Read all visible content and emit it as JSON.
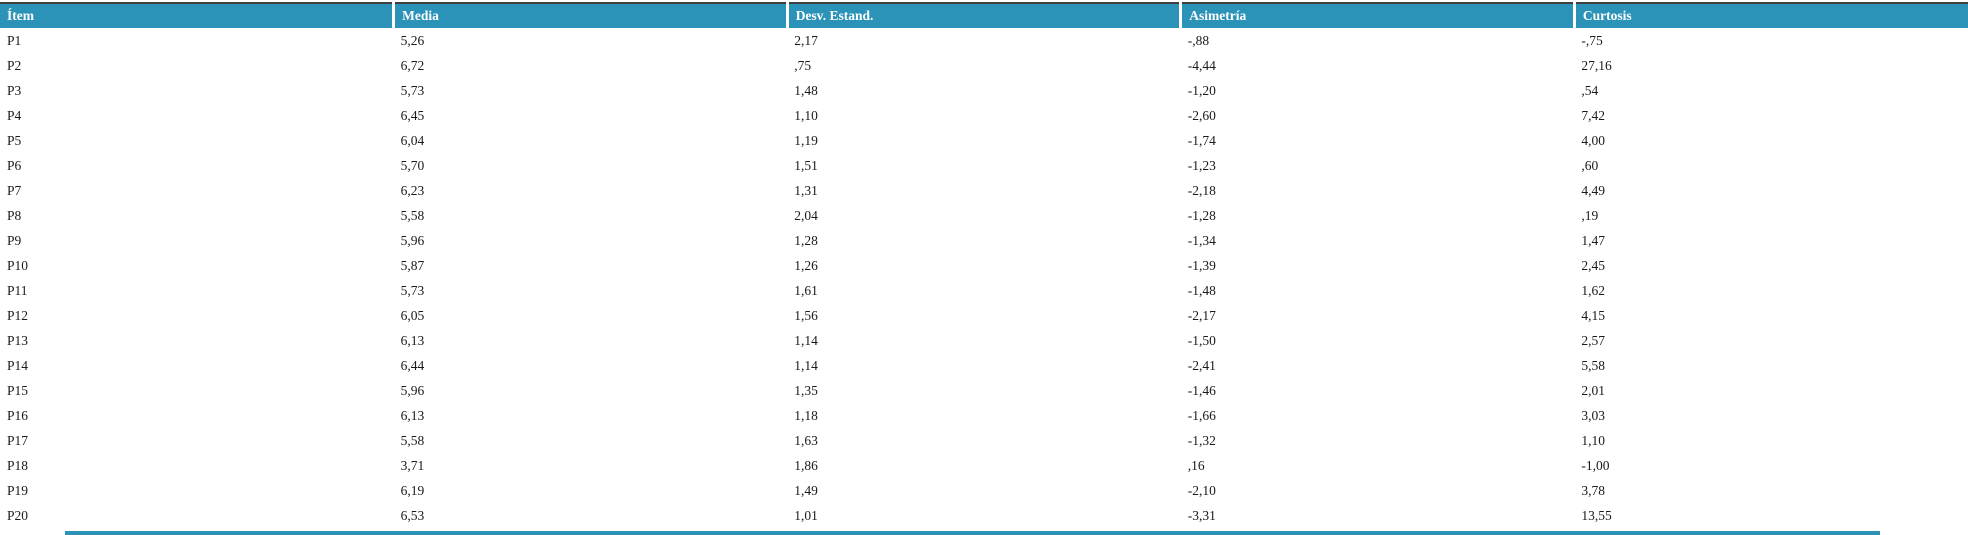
{
  "colors": {
    "header_bg": "#2b93b8",
    "header_text": "#ffffff",
    "body_text": "#1a1a1a",
    "table_top_border": "#3f3f3f",
    "row_bg": "#ffffff"
  },
  "table": {
    "columns": [
      "Ítem",
      "Media",
      "Desv. Estand.",
      "Asimetría",
      "Curtosis"
    ],
    "column_keys": [
      "item",
      "media",
      "desv-estand",
      "asimetria",
      "curtosis"
    ],
    "rows": [
      [
        "P1",
        "5,26",
        "2,17",
        "-,88",
        "-,75"
      ],
      [
        "P2",
        "6,72",
        ",75",
        "-4,44",
        "27,16"
      ],
      [
        "P3",
        "5,73",
        "1,48",
        "-1,20",
        ",54"
      ],
      [
        "P4",
        "6,45",
        "1,10",
        "-2,60",
        "7,42"
      ],
      [
        "P5",
        "6,04",
        "1,19",
        "-1,74",
        "4,00"
      ],
      [
        "P6",
        "5,70",
        "1,51",
        "-1,23",
        ",60"
      ],
      [
        "P7",
        "6,23",
        "1,31",
        "-2,18",
        "4,49"
      ],
      [
        "P8",
        "5,58",
        "2,04",
        "-1,28",
        ",19"
      ],
      [
        "P9",
        "5,96",
        "1,28",
        "-1,34",
        "1,47"
      ],
      [
        "P10",
        "5,87",
        "1,26",
        "-1,39",
        "2,45"
      ],
      [
        "P11",
        "5,73",
        "1,61",
        "-1,48",
        "1,62"
      ],
      [
        "P12",
        "6,05",
        "1,56",
        "-2,17",
        "4,15"
      ],
      [
        "P13",
        "6,13",
        "1,14",
        "-1,50",
        "2,57"
      ],
      [
        "P14",
        "6,44",
        "1,14",
        "-2,41",
        "5,58"
      ],
      [
        "P15",
        "5,96",
        "1,35",
        "-1,46",
        "2,01"
      ],
      [
        "P16",
        "6,13",
        "1,18",
        "-1,66",
        "3,03"
      ],
      [
        "P17",
        "5,58",
        "1,63",
        "-1,32",
        "1,10"
      ],
      [
        "P18",
        "3,71",
        "1,86",
        ",16",
        "-1,00"
      ],
      [
        "P19",
        "6,19",
        "1,49",
        "-2,10",
        "3,78"
      ],
      [
        "P20",
        "6,53",
        "1,01",
        "-3,31",
        "13,55"
      ]
    ]
  }
}
